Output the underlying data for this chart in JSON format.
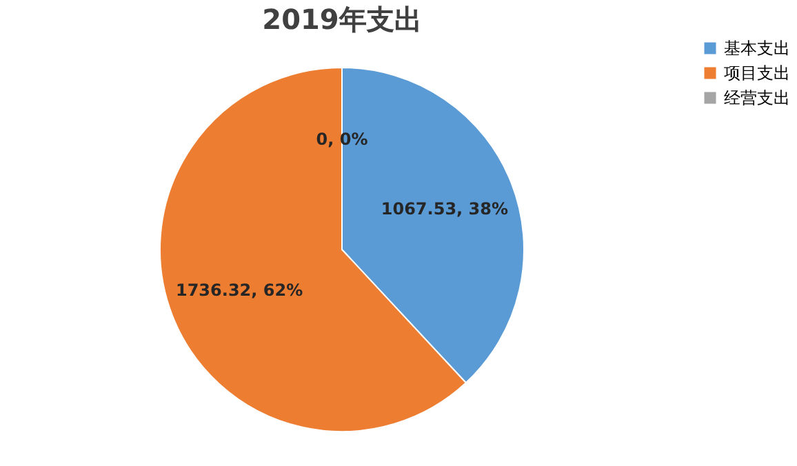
{
  "chart_data": {
    "type": "pie",
    "title": "2019年支出",
    "categories": [
      "基本支出",
      "项目支出",
      "经营支出"
    ],
    "values": [
      1067.53,
      1736.32,
      0
    ],
    "colors": [
      "#5b9bd5",
      "#ed7d31",
      "#a5a5a5"
    ],
    "value_labels": [
      "1067.53, 38%",
      "1736.32, 62%",
      "0, 0%"
    ],
    "legend": "right"
  }
}
